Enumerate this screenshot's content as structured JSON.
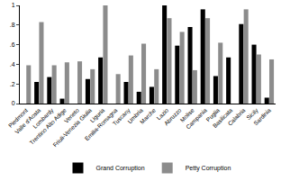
{
  "chart_data": {
    "type": "bar",
    "categories": [
      "Piedmont",
      "Valle d'Aosta",
      "Lombardy",
      "Trentino Alto Adige",
      "Veneto",
      "Friuli-Venezia Giulia",
      "Liguria",
      "Emilia-Romagna",
      "Tuscany",
      "Umbria",
      "Marche",
      "Lazio",
      "Abruzzo",
      "Molise",
      "Campania",
      "Puglia",
      "Basilicata",
      "Calabria",
      "Sicily",
      "Sardinia"
    ],
    "series": [
      {
        "name": "Grand Corruption",
        "color": "#000000",
        "values": [
          0,
          0.22,
          0.27,
          0.05,
          0,
          0.25,
          0.47,
          0,
          0.22,
          0.12,
          0.17,
          1.0,
          0.59,
          0.78,
          0.96,
          0.28,
          0.47,
          0.81,
          0.6,
          0.06
        ]
      },
      {
        "name": "Petty Corruption",
        "color": "#8c8c8c",
        "values": [
          0.39,
          0.83,
          0.39,
          0.42,
          0.43,
          0.35,
          1.0,
          0.3,
          0.49,
          0.61,
          0.35,
          0.87,
          0.73,
          0.34,
          0.87,
          0.62,
          0,
          0.96,
          0.5,
          0.45
        ]
      }
    ],
    "ylim": [
      0,
      1
    ],
    "yticks": [
      0,
      {
        "value": 0.2,
        "label": ".2"
      },
      {
        "value": 0.4,
        "label": ".4"
      },
      {
        "value": 0.6,
        "label": ".6"
      },
      {
        "value": 0.8,
        "label": ".8"
      },
      1
    ],
    "grid": false,
    "legend": "bottom"
  }
}
